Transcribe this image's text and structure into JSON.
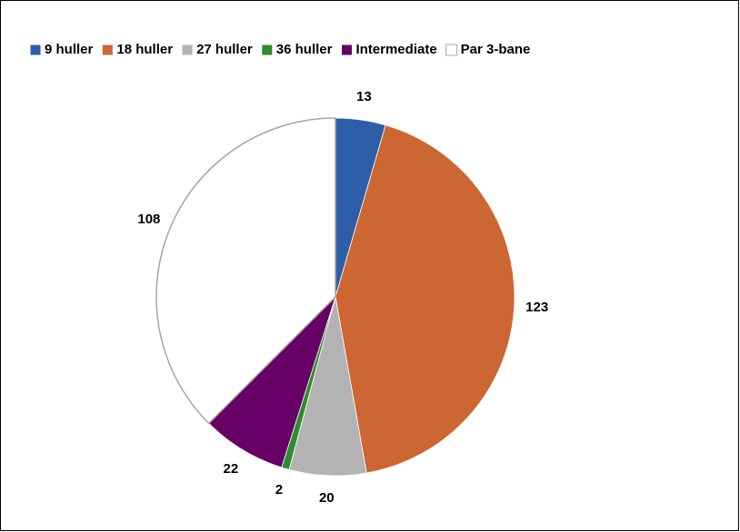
{
  "chart_data": {
    "type": "pie",
    "categories": [
      "9 huller",
      "18 huller",
      "27 huller",
      "36 huller",
      "Intermediate",
      "Par 3-bane"
    ],
    "values": [
      13,
      123,
      20,
      2,
      22,
      108
    ],
    "colors": [
      "#2e5ea8",
      "#cc6633",
      "#b3b3b3",
      "#2e8b2e",
      "#660066",
      "#ffffff"
    ],
    "legend": "top"
  }
}
